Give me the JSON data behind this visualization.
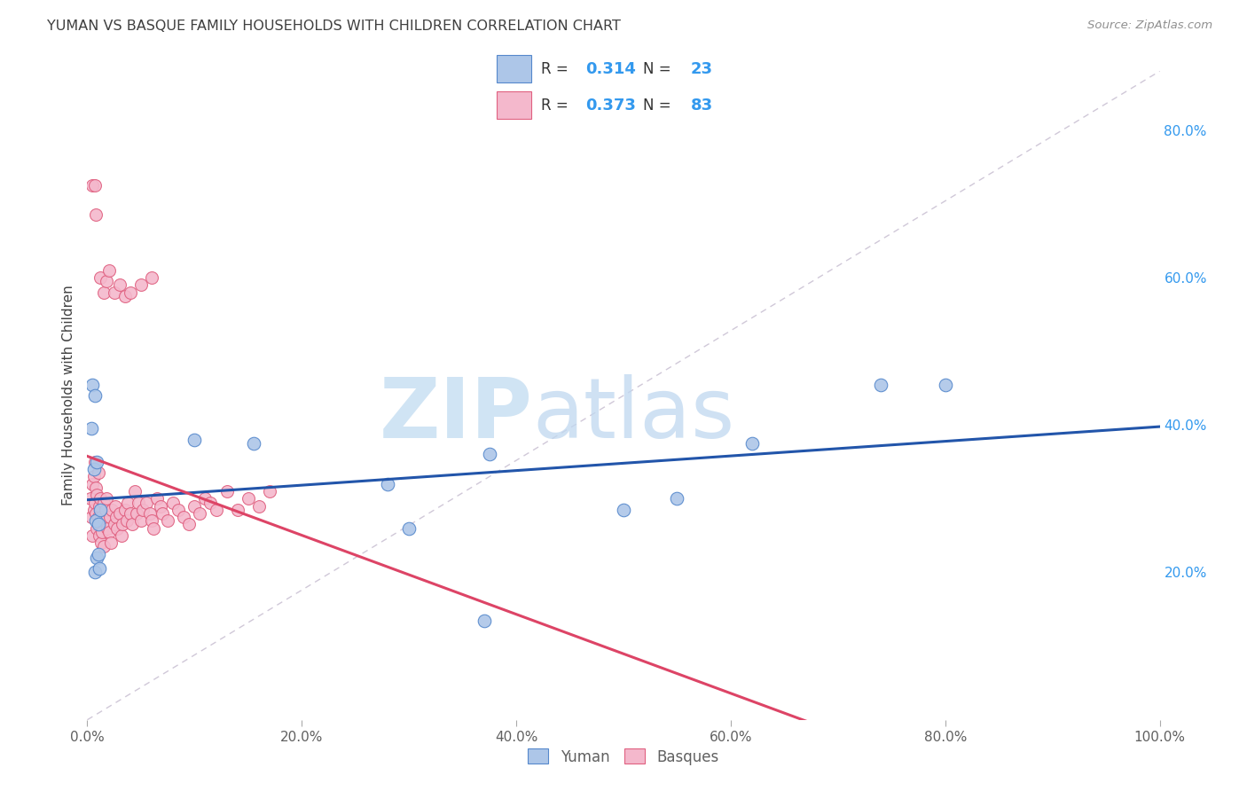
{
  "title": "YUMAN VS BASQUE FAMILY HOUSEHOLDS WITH CHILDREN CORRELATION CHART",
  "source": "Source: ZipAtlas.com",
  "ylabel": "Family Households with Children",
  "blue_color": "#adc6e8",
  "blue_edge_color": "#5588cc",
  "pink_color": "#f4b8cc",
  "pink_edge_color": "#e06080",
  "blue_line_color": "#2255aa",
  "pink_line_color": "#dd4466",
  "diagonal_color": "#d0c8d8",
  "background_color": "#ffffff",
  "grid_color": "#d8d8e8",
  "title_color": "#404040",
  "source_color": "#909090",
  "right_axis_color": "#3399ee",
  "yuman_x": [
    0.004,
    0.005,
    0.006,
    0.007,
    0.007,
    0.008,
    0.009,
    0.009,
    0.01,
    0.01,
    0.011,
    0.012,
    0.1,
    0.155,
    0.28,
    0.3,
    0.375,
    0.5,
    0.55,
    0.62,
    0.74,
    0.8,
    0.37
  ],
  "yuman_y": [
    0.395,
    0.455,
    0.34,
    0.44,
    0.2,
    0.27,
    0.35,
    0.22,
    0.265,
    0.225,
    0.205,
    0.285,
    0.38,
    0.375,
    0.32,
    0.26,
    0.36,
    0.285,
    0.3,
    0.375,
    0.455,
    0.455,
    0.135
  ],
  "basque_x": [
    0.003,
    0.004,
    0.005,
    0.005,
    0.006,
    0.006,
    0.007,
    0.007,
    0.008,
    0.008,
    0.009,
    0.009,
    0.01,
    0.01,
    0.011,
    0.011,
    0.012,
    0.012,
    0.013,
    0.013,
    0.014,
    0.015,
    0.015,
    0.016,
    0.017,
    0.018,
    0.019,
    0.02,
    0.021,
    0.022,
    0.023,
    0.025,
    0.026,
    0.027,
    0.028,
    0.03,
    0.032,
    0.033,
    0.035,
    0.037,
    0.038,
    0.04,
    0.042,
    0.044,
    0.046,
    0.048,
    0.05,
    0.052,
    0.055,
    0.058,
    0.06,
    0.062,
    0.065,
    0.068,
    0.07,
    0.075,
    0.08,
    0.085,
    0.09,
    0.095,
    0.1,
    0.105,
    0.11,
    0.115,
    0.12,
    0.13,
    0.14,
    0.15,
    0.16,
    0.17,
    0.005,
    0.007,
    0.008,
    0.012,
    0.015,
    0.018,
    0.02,
    0.025,
    0.03,
    0.035,
    0.04,
    0.05,
    0.06
  ],
  "basque_y": [
    0.3,
    0.275,
    0.25,
    0.32,
    0.285,
    0.33,
    0.295,
    0.35,
    0.28,
    0.315,
    0.26,
    0.305,
    0.275,
    0.335,
    0.29,
    0.25,
    0.265,
    0.3,
    0.24,
    0.275,
    0.255,
    0.235,
    0.295,
    0.27,
    0.285,
    0.3,
    0.26,
    0.255,
    0.275,
    0.24,
    0.285,
    0.265,
    0.29,
    0.275,
    0.26,
    0.28,
    0.25,
    0.265,
    0.285,
    0.27,
    0.295,
    0.28,
    0.265,
    0.31,
    0.28,
    0.295,
    0.27,
    0.285,
    0.295,
    0.28,
    0.27,
    0.26,
    0.3,
    0.29,
    0.28,
    0.27,
    0.295,
    0.285,
    0.275,
    0.265,
    0.29,
    0.28,
    0.3,
    0.295,
    0.285,
    0.31,
    0.285,
    0.3,
    0.29,
    0.31,
    0.725,
    0.725,
    0.685,
    0.6,
    0.58,
    0.595,
    0.61,
    0.58,
    0.59,
    0.575,
    0.58,
    0.59,
    0.6
  ],
  "xlim": [
    0.0,
    1.0
  ],
  "ylim": [
    0.0,
    0.88
  ],
  "xticks": [
    0.0,
    0.2,
    0.4,
    0.6,
    0.8,
    1.0
  ],
  "yticks_right": [
    0.2,
    0.4,
    0.6,
    0.8
  ],
  "xticklabels": [
    "0.0%",
    "20.0%",
    "40.0%",
    "60.0%",
    "80.0%",
    "100.0%"
  ],
  "yticklabels_right": [
    "20.0%",
    "40.0%",
    "60.0%",
    "80.0%"
  ]
}
